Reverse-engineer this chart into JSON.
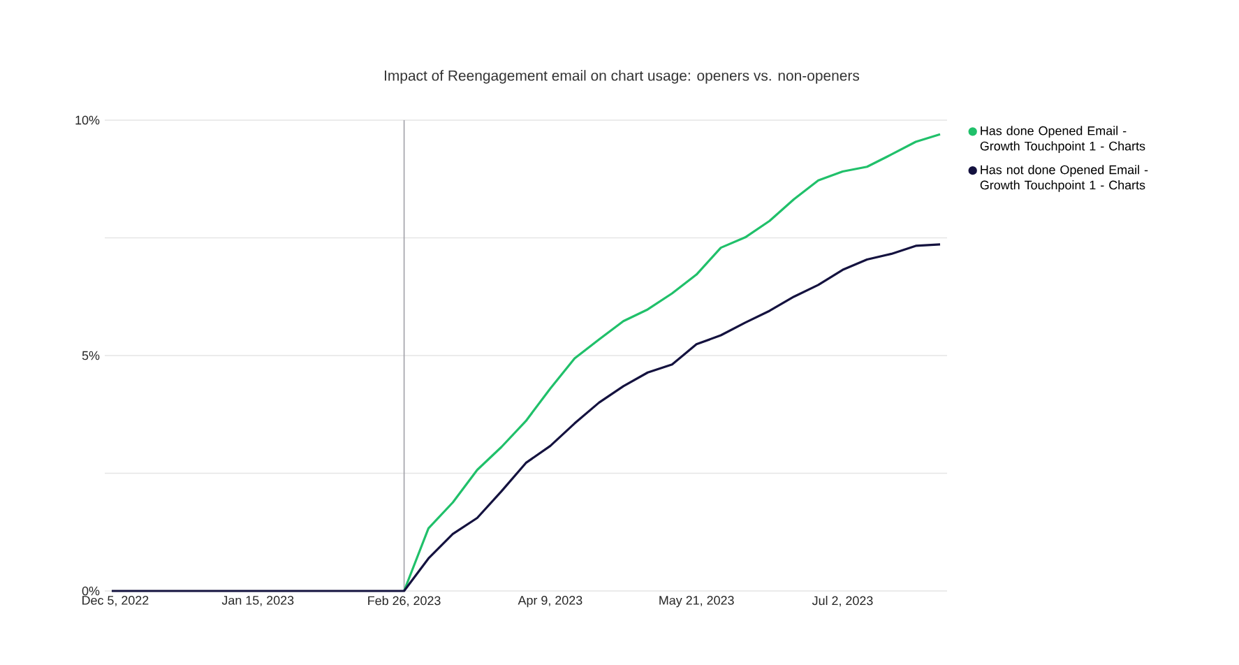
{
  "chart_data": {
    "type": "line",
    "title": "Impact of Reengagement email on chart usage: openers vs. non-openers",
    "x": [
      "2022-12-04",
      "2022-12-11",
      "2022-12-18",
      "2022-12-25",
      "2023-01-01",
      "2023-01-08",
      "2023-01-15",
      "2023-01-22",
      "2023-01-29",
      "2023-02-05",
      "2023-02-12",
      "2023-02-19",
      "2023-02-26",
      "2023-03-05",
      "2023-03-12",
      "2023-03-19",
      "2023-03-26",
      "2023-04-02",
      "2023-04-09",
      "2023-04-16",
      "2023-04-23",
      "2023-04-30",
      "2023-05-07",
      "2023-05-14",
      "2023-05-21",
      "2023-05-28",
      "2023-06-04",
      "2023-06-11",
      "2023-06-18",
      "2023-06-25",
      "2023-07-02",
      "2023-07-09",
      "2023-07-16",
      "2023-07-23",
      "2023-07-30"
    ],
    "series": [
      {
        "name": "Has done Opened Email - Growth Touchpoint 1 - Charts",
        "color": "#20c06a",
        "values": [
          null,
          null,
          null,
          null,
          null,
          null,
          null,
          null,
          null,
          null,
          null,
          null,
          0,
          1.33,
          1.88,
          2.57,
          3.06,
          3.61,
          4.3,
          4.94,
          5.34,
          5.73,
          5.98,
          6.32,
          6.72,
          7.29,
          7.51,
          7.86,
          8.32,
          8.72,
          8.91,
          9.01,
          9.27,
          9.54,
          9.7
        ]
      },
      {
        "name": "Has not done Opened Email - Growth Touchpoint 1 - Charts",
        "color": "#14123f",
        "values": [
          0,
          0,
          0,
          0,
          0,
          0,
          0,
          0,
          0,
          0,
          0,
          0,
          0,
          0.69,
          1.21,
          1.55,
          2.12,
          2.72,
          3.08,
          3.56,
          4.0,
          4.35,
          4.64,
          4.81,
          5.24,
          5.43,
          5.7,
          5.95,
          6.25,
          6.5,
          6.82,
          7.04,
          7.16,
          7.33,
          7.36
        ]
      }
    ],
    "xlim": [
      "2022-12-02",
      "2023-08-01"
    ],
    "xticks": [
      {
        "value": "2022-12-05",
        "label": "Dec 5, 2022"
      },
      {
        "value": "2023-01-15",
        "label": "Jan 15, 2023"
      },
      {
        "value": "2023-02-26",
        "label": "Feb 26, 2023"
      },
      {
        "value": "2023-04-09",
        "label": "Apr 9, 2023"
      },
      {
        "value": "2023-05-21",
        "label": "May 21, 2023"
      },
      {
        "value": "2023-07-02",
        "label": "Jul 2, 2023"
      }
    ],
    "ylim": [
      0,
      10
    ],
    "yticks": [
      {
        "value": 0,
        "label": "0%"
      },
      {
        "value": 2.5,
        "label": null
      },
      {
        "value": 5,
        "label": "5%"
      },
      {
        "value": 7.5,
        "label": null
      },
      {
        "value": 10,
        "label": "10%"
      }
    ],
    "ref_lines": [
      {
        "axis": "x",
        "value": "2023-02-26",
        "color": "#a0a0a8"
      }
    ],
    "grid": "y",
    "legend": "right",
    "marker": "none",
    "line_style": "solid"
  }
}
